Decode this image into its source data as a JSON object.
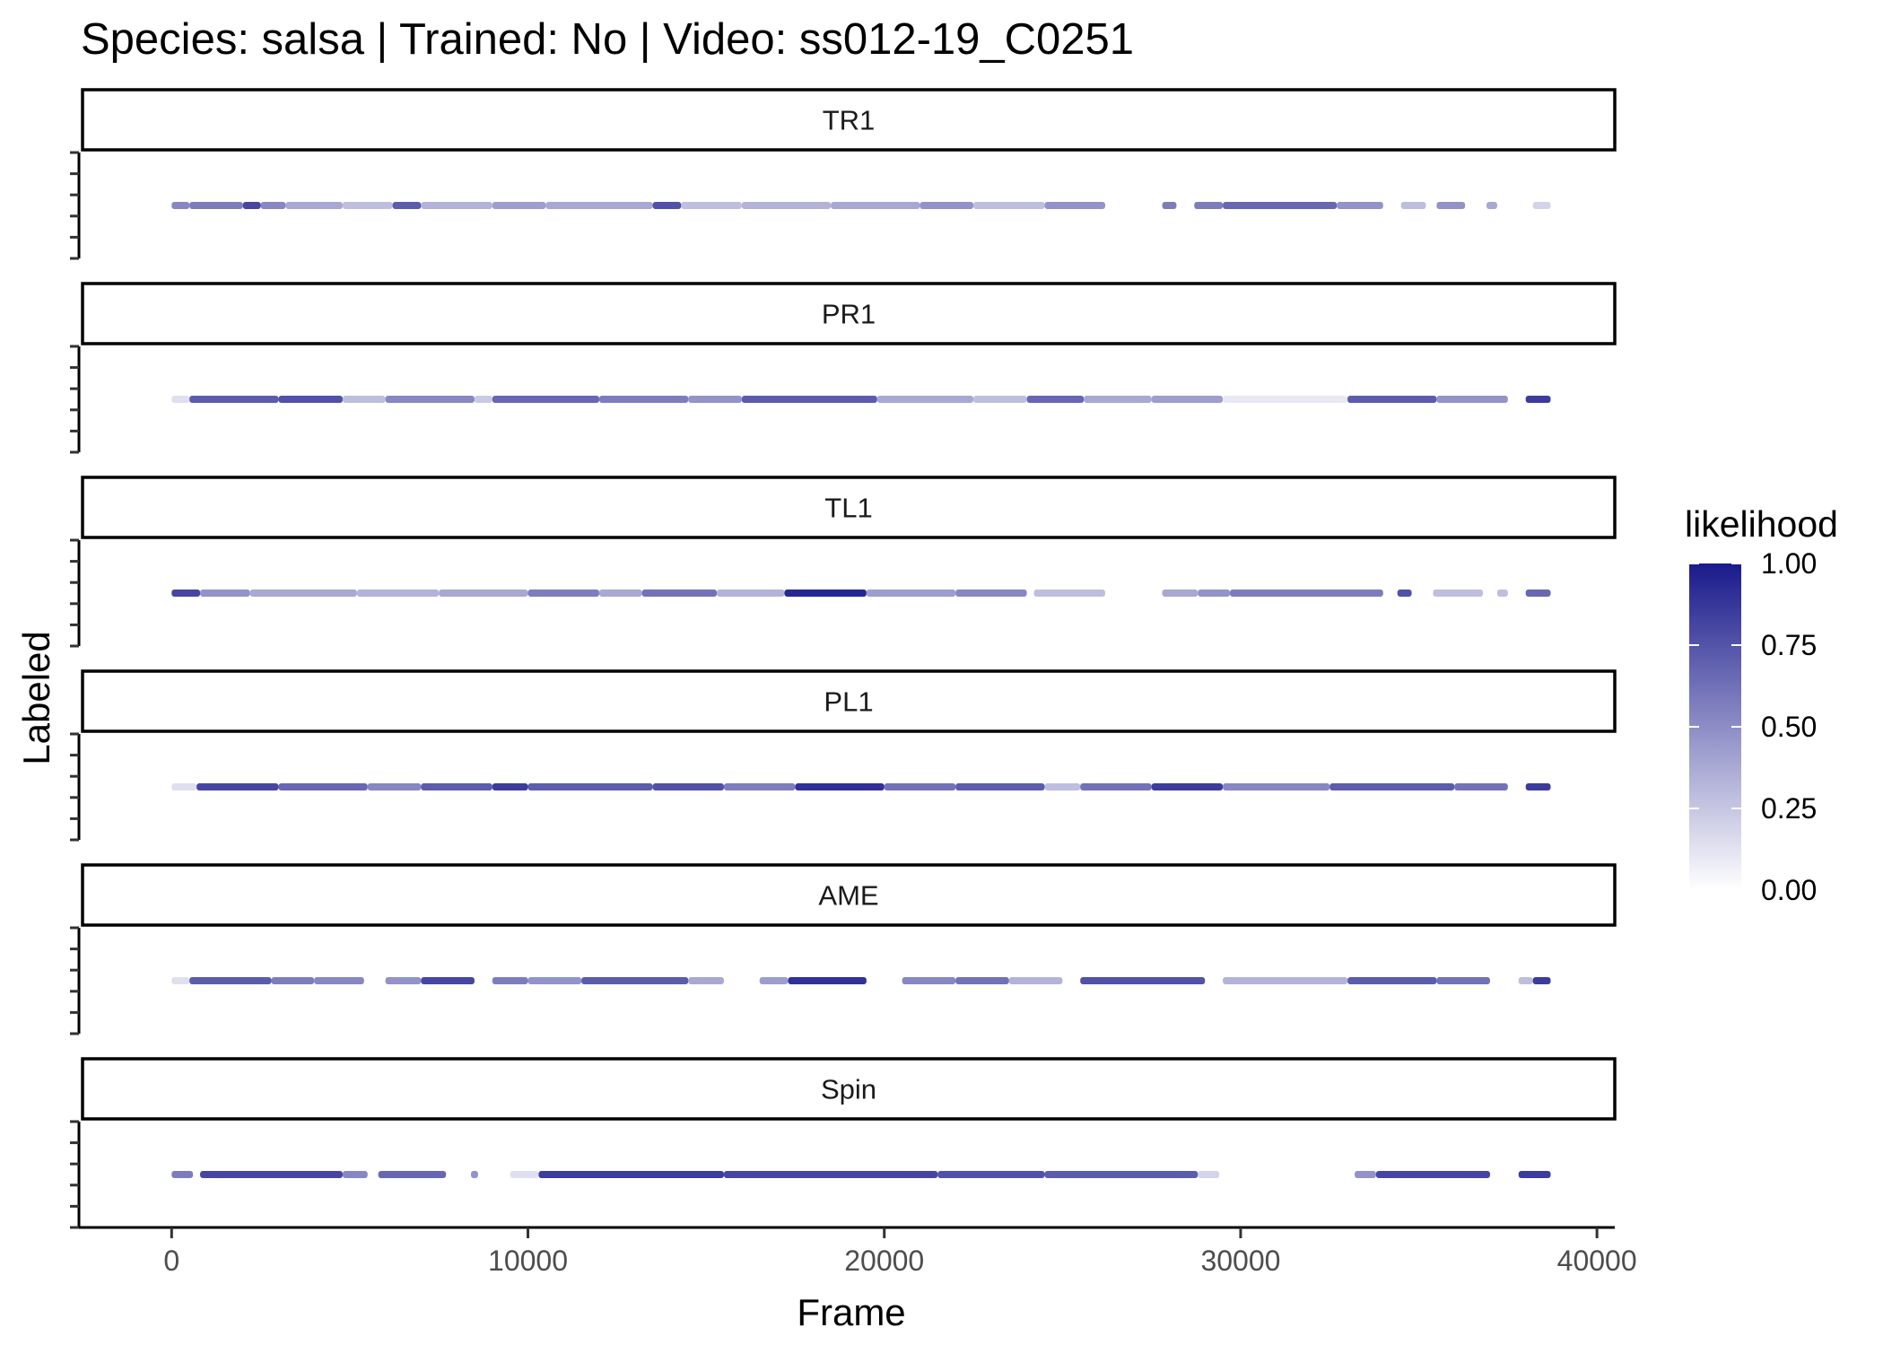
{
  "chart_data": {
    "type": "scatter",
    "title": "Species: salsa | Trained: No | Video: ss012-19_C0251",
    "xlabel": "Frame",
    "ylabel": "Labeled",
    "xlim": [
      -2500,
      40500
    ],
    "x_ticks": [
      0,
      10000,
      20000,
      30000,
      40000
    ],
    "x_tick_labels": [
      "0",
      "10000",
      "20000",
      "30000",
      "40000"
    ],
    "legend": {
      "title": "likelihood",
      "position": "right",
      "ticks": [
        1.0,
        0.75,
        0.5,
        0.25,
        0.0
      ],
      "tick_labels": [
        "1.00",
        "0.75",
        "0.50",
        "0.25",
        "0.00"
      ],
      "color_low": "#ffffff",
      "color_high": "#1a1a8c"
    },
    "facets": [
      {
        "name": "TR1",
        "segments": [
          [
            0,
            500,
            0.55
          ],
          [
            500,
            2000,
            0.6
          ],
          [
            2000,
            2500,
            0.85
          ],
          [
            2500,
            3200,
            0.55
          ],
          [
            3200,
            4800,
            0.4
          ],
          [
            4800,
            6200,
            0.3
          ],
          [
            6200,
            7000,
            0.75
          ],
          [
            7000,
            9000,
            0.35
          ],
          [
            9000,
            10500,
            0.45
          ],
          [
            10500,
            13500,
            0.4
          ],
          [
            13500,
            14300,
            0.8
          ],
          [
            14300,
            16000,
            0.3
          ],
          [
            16000,
            18500,
            0.35
          ],
          [
            18500,
            21000,
            0.4
          ],
          [
            21000,
            22500,
            0.5
          ],
          [
            22500,
            24500,
            0.3
          ],
          [
            24500,
            26200,
            0.5
          ],
          [
            27800,
            28200,
            0.6
          ],
          [
            28700,
            29500,
            0.6
          ],
          [
            29500,
            32700,
            0.7
          ],
          [
            32700,
            34000,
            0.5
          ],
          [
            34500,
            35200,
            0.3
          ],
          [
            35500,
            36300,
            0.5
          ],
          [
            36900,
            37200,
            0.4
          ],
          [
            38200,
            38700,
            0.2
          ]
        ]
      },
      {
        "name": "PR1",
        "segments": [
          [
            0,
            500,
            0.15
          ],
          [
            500,
            3000,
            0.75
          ],
          [
            3000,
            4800,
            0.8
          ],
          [
            4800,
            6000,
            0.3
          ],
          [
            6000,
            8500,
            0.55
          ],
          [
            8500,
            9000,
            0.25
          ],
          [
            9000,
            12000,
            0.7
          ],
          [
            12000,
            14500,
            0.6
          ],
          [
            14500,
            16000,
            0.5
          ],
          [
            16000,
            19800,
            0.75
          ],
          [
            19800,
            22500,
            0.4
          ],
          [
            22500,
            24000,
            0.3
          ],
          [
            24000,
            25600,
            0.7
          ],
          [
            25600,
            27500,
            0.4
          ],
          [
            27500,
            29500,
            0.45
          ],
          [
            29500,
            33000,
            0.1
          ],
          [
            33000,
            35500,
            0.75
          ],
          [
            35500,
            37500,
            0.5
          ],
          [
            38000,
            38700,
            0.9
          ]
        ]
      },
      {
        "name": "TL1",
        "segments": [
          [
            0,
            800,
            0.85
          ],
          [
            800,
            2200,
            0.5
          ],
          [
            2200,
            5200,
            0.4
          ],
          [
            5200,
            7500,
            0.35
          ],
          [
            7500,
            10000,
            0.4
          ],
          [
            10000,
            12000,
            0.6
          ],
          [
            12000,
            13200,
            0.4
          ],
          [
            13200,
            15300,
            0.65
          ],
          [
            15300,
            17200,
            0.35
          ],
          [
            17200,
            19500,
            1.0
          ],
          [
            19500,
            22000,
            0.45
          ],
          [
            22000,
            24000,
            0.55
          ],
          [
            24200,
            26200,
            0.3
          ],
          [
            27800,
            28800,
            0.4
          ],
          [
            28800,
            29700,
            0.5
          ],
          [
            29700,
            34000,
            0.6
          ],
          [
            34400,
            34800,
            0.8
          ],
          [
            35400,
            36800,
            0.3
          ],
          [
            37200,
            37500,
            0.3
          ],
          [
            38000,
            38700,
            0.7
          ]
        ]
      },
      {
        "name": "PL1",
        "segments": [
          [
            0,
            700,
            0.15
          ],
          [
            700,
            3000,
            0.85
          ],
          [
            3000,
            5500,
            0.7
          ],
          [
            5500,
            7000,
            0.55
          ],
          [
            7000,
            9000,
            0.75
          ],
          [
            9000,
            10000,
            0.9
          ],
          [
            10000,
            13500,
            0.75
          ],
          [
            13500,
            15500,
            0.8
          ],
          [
            15500,
            17500,
            0.6
          ],
          [
            17500,
            20000,
            0.95
          ],
          [
            20000,
            22000,
            0.65
          ],
          [
            22000,
            24500,
            0.75
          ],
          [
            24500,
            25500,
            0.3
          ],
          [
            25500,
            27500,
            0.65
          ],
          [
            27500,
            29500,
            0.9
          ],
          [
            29500,
            32500,
            0.55
          ],
          [
            32500,
            36000,
            0.75
          ],
          [
            36000,
            37500,
            0.65
          ],
          [
            38000,
            38700,
            0.9
          ]
        ]
      },
      {
        "name": "AME",
        "segments": [
          [
            0,
            500,
            0.15
          ],
          [
            500,
            2800,
            0.75
          ],
          [
            2800,
            4000,
            0.6
          ],
          [
            4000,
            5400,
            0.55
          ],
          [
            6000,
            7000,
            0.5
          ],
          [
            7000,
            8500,
            0.85
          ],
          [
            9000,
            10000,
            0.6
          ],
          [
            10000,
            11500,
            0.5
          ],
          [
            11500,
            14500,
            0.75
          ],
          [
            14500,
            15500,
            0.4
          ],
          [
            16500,
            17300,
            0.45
          ],
          [
            17300,
            19500,
            0.95
          ],
          [
            20500,
            22000,
            0.55
          ],
          [
            22000,
            23500,
            0.65
          ],
          [
            23500,
            25000,
            0.35
          ],
          [
            25500,
            29000,
            0.8
          ],
          [
            29500,
            33000,
            0.35
          ],
          [
            33000,
            35500,
            0.75
          ],
          [
            35500,
            37000,
            0.65
          ],
          [
            37800,
            38200,
            0.3
          ],
          [
            38200,
            38700,
            0.9
          ]
        ]
      },
      {
        "name": "Spin",
        "segments": [
          [
            0,
            600,
            0.6
          ],
          [
            800,
            4800,
            0.85
          ],
          [
            4800,
            5500,
            0.55
          ],
          [
            5800,
            7700,
            0.7
          ],
          [
            8400,
            8600,
            0.5
          ],
          [
            9500,
            10300,
            0.15
          ],
          [
            10300,
            15500,
            0.9
          ],
          [
            15500,
            21500,
            0.85
          ],
          [
            21500,
            24500,
            0.8
          ],
          [
            24500,
            28800,
            0.75
          ],
          [
            28800,
            29400,
            0.2
          ],
          [
            33200,
            33800,
            0.5
          ],
          [
            33800,
            37000,
            0.85
          ],
          [
            37800,
            38700,
            0.9
          ]
        ]
      }
    ]
  }
}
